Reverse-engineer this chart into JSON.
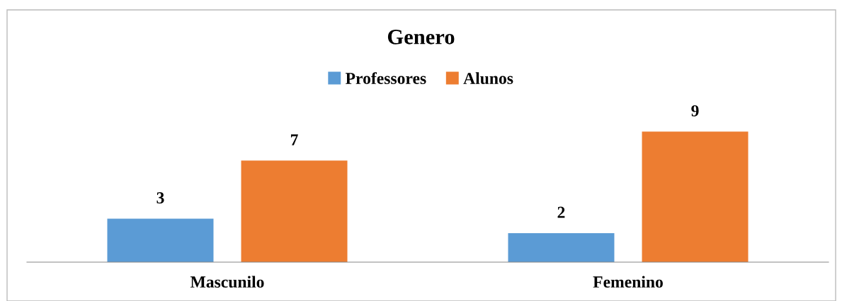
{
  "chart_data": {
    "type": "bar",
    "title": "Genero",
    "categories": [
      "Mascunilo",
      "Femenino"
    ],
    "series": [
      {
        "name": "Professores",
        "color": "#5b9bd5",
        "values": [
          3,
          2
        ]
      },
      {
        "name": "Alunos",
        "color": "#ed7d31",
        "values": [
          7,
          9
        ]
      }
    ],
    "data_labels": true,
    "legend": "top",
    "grid": false
  }
}
